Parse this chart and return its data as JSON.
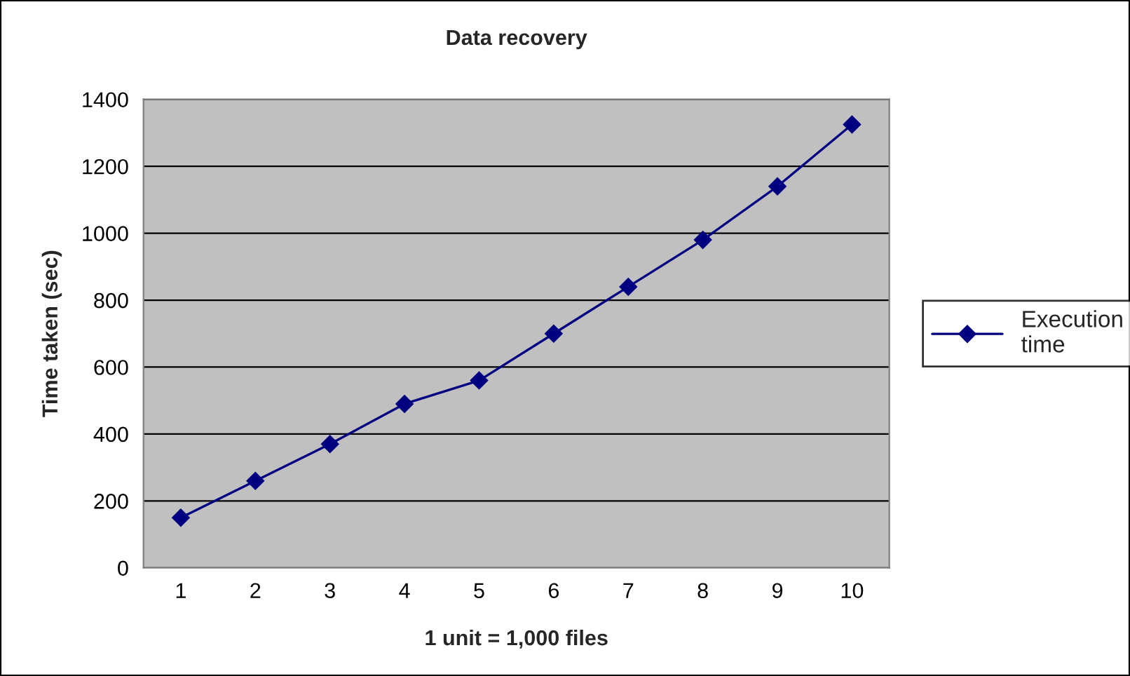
{
  "chart_data": {
    "type": "line",
    "title": "Data recovery",
    "xlabel": "1 unit = 1,000 files",
    "ylabel": "Time taken (sec)",
    "categories": [
      "1",
      "2",
      "3",
      "4",
      "5",
      "6",
      "7",
      "8",
      "9",
      "10"
    ],
    "series": [
      {
        "name": "Execution\ntime",
        "color": "#000080",
        "values": [
          150,
          260,
          370,
          490,
          560,
          700,
          840,
          980,
          1140,
          1325
        ]
      }
    ],
    "ylim": [
      0,
      1400
    ],
    "yticks": [
      0,
      200,
      400,
      600,
      800,
      1000,
      1200,
      1400
    ],
    "grid": "y",
    "legend": "right",
    "marker": "diamond",
    "line_style": "solid"
  }
}
